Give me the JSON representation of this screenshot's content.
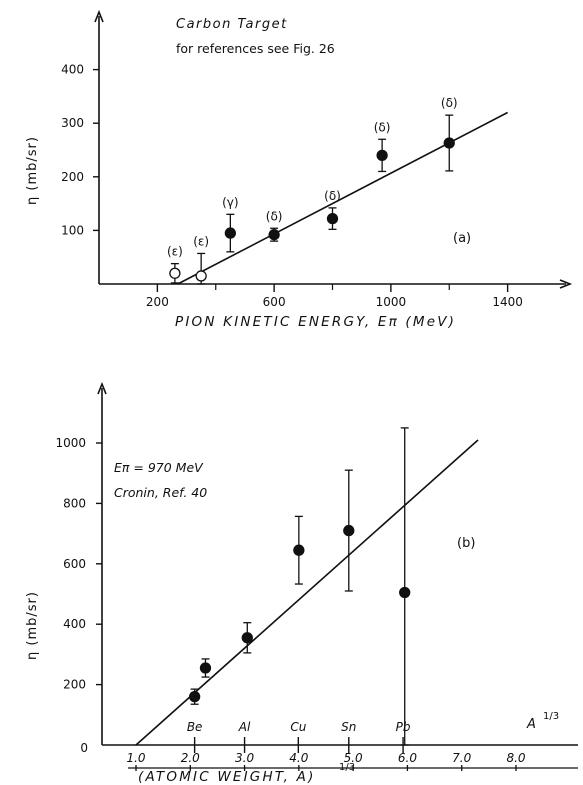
{
  "chart_data": [
    {
      "type": "scatter",
      "title": "Carbon Target",
      "subtitle": "for references see Fig. 26",
      "xlabel": "PION KINETIC ENERGY, Eπ (MeV)",
      "ylabel": "η (mb/sr)",
      "panel_label": "(a)",
      "xlim": [
        0,
        1600
      ],
      "ylim": [
        0,
        500
      ],
      "x_ticks": [
        200,
        600,
        1000,
        1400
      ],
      "x_minor_ticks": [
        400,
        800,
        1200
      ],
      "y_ticks": [
        100,
        200,
        300,
        400
      ],
      "grid": false,
      "points": [
        {
          "x": 260,
          "y": 20,
          "err": 18,
          "marker": "open",
          "label": "(ε)"
        },
        {
          "x": 350,
          "y": 15,
          "err": 42,
          "marker": "open",
          "label": "(ε)"
        },
        {
          "x": 450,
          "y": 95,
          "err": 35,
          "marker": "filled",
          "label": "(γ)"
        },
        {
          "x": 600,
          "y": 92,
          "err": 12,
          "marker": "filled",
          "label": "(δ)"
        },
        {
          "x": 800,
          "y": 122,
          "err": 20,
          "marker": "filled",
          "label": "(δ)"
        },
        {
          "x": 970,
          "y": 240,
          "err": 30,
          "marker": "filled",
          "label": "(δ)"
        },
        {
          "x": 1200,
          "y": 263,
          "err": 52,
          "marker": "filled",
          "label": "(δ)"
        }
      ],
      "fit_line": {
        "x": [
          270,
          1400
        ],
        "y": [
          0,
          320
        ]
      }
    },
    {
      "type": "scatter",
      "annotation_line1": "Eπ = 970 MeV",
      "annotation_line2": "Cronin, Ref. 40",
      "xlabel": "(ATOMIC WEIGHT, A)",
      "xlabel_power": "1/3",
      "ylabel": "η (mb/sr)",
      "panel_label": "(b)",
      "axis_end_label": "A",
      "axis_end_power": "1/3",
      "xlim": [
        0,
        9.2
      ],
      "ylim": [
        0,
        1200
      ],
      "x_ticks": [
        1.0,
        2.0,
        3.0,
        4.0,
        5.0,
        6.0,
        7.0,
        8.0
      ],
      "x_tick_labels": [
        "1.0",
        "2.0",
        "3.0",
        "4.0",
        "5.0",
        "6.0",
        "7.0",
        "8.0"
      ],
      "y_ticks": [
        200,
        400,
        600,
        800,
        1000
      ],
      "origin_label": "0",
      "grid": false,
      "elements": [
        {
          "name": "Be",
          "x": 2.08
        },
        {
          "name": "Al",
          "x": 3.0
        },
        {
          "name": "Cu",
          "x": 3.99
        },
        {
          "name": "Sn",
          "x": 4.92
        },
        {
          "name": "Pb",
          "x": 5.92
        }
      ],
      "points": [
        {
          "x": 2.08,
          "y": 160,
          "err": 25
        },
        {
          "x": 2.28,
          "y": 255,
          "err": 30
        },
        {
          "x": 3.05,
          "y": 355,
          "err": 50
        },
        {
          "x": 4.0,
          "y": 645,
          "err": 112
        },
        {
          "x": 4.92,
          "y": 710,
          "err": 200
        },
        {
          "x": 5.95,
          "y": 505,
          "err": 545
        }
      ],
      "fit_line": {
        "x": [
          1.0,
          7.3
        ],
        "y": [
          0,
          1010
        ]
      }
    }
  ]
}
